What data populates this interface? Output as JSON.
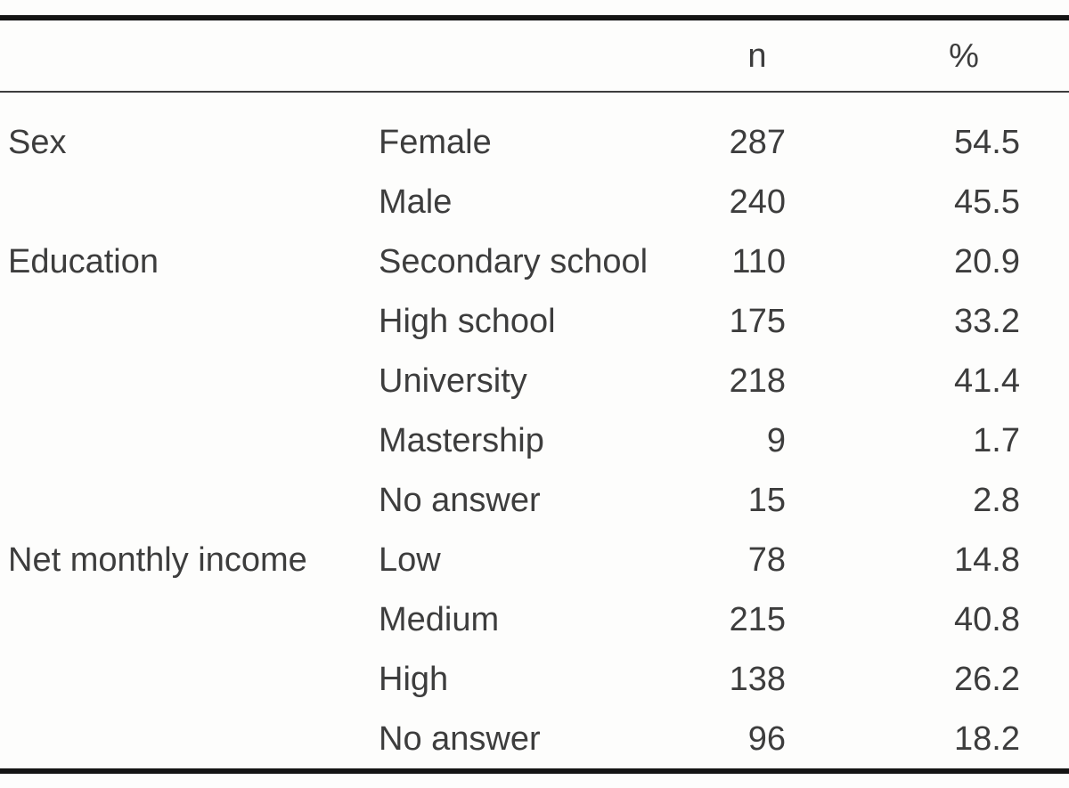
{
  "table": {
    "columns": {
      "n": "n",
      "pct": "%"
    },
    "groups": [
      {
        "category": "Sex",
        "rows": [
          {
            "label": "Female",
            "n": "287",
            "pct": "54.5"
          },
          {
            "label": "Male",
            "n": "240",
            "pct": "45.5"
          }
        ]
      },
      {
        "category": "Education",
        "rows": [
          {
            "label": "Secondary school",
            "n": "110",
            "pct": "20.9"
          },
          {
            "label": "High school",
            "n": "175",
            "pct": "33.2"
          },
          {
            "label": "University",
            "n": "218",
            "pct": "41.4"
          },
          {
            "label": "Mastership",
            "n": "9",
            "pct": "1.7"
          },
          {
            "label": "No answer",
            "n": "15",
            "pct": "2.8"
          }
        ]
      },
      {
        "category": "Net monthly income",
        "rows": [
          {
            "label": "Low",
            "n": "78",
            "pct": "14.8"
          },
          {
            "label": "Medium",
            "n": "215",
            "pct": "40.8"
          },
          {
            "label": "High",
            "n": "138",
            "pct": "26.2"
          },
          {
            "label": "No answer",
            "n": "96",
            "pct": "18.2"
          }
        ]
      }
    ]
  },
  "colors": {
    "background": "#fdfdfc",
    "text": "#3d3d3d",
    "rule_heavy": "#141414",
    "rule_light": "#3d3d3d"
  }
}
